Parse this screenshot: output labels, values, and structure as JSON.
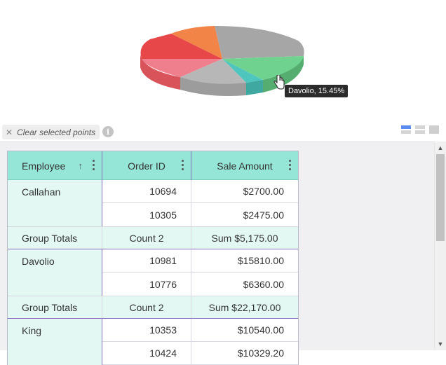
{
  "chart": {
    "tooltip": "Davolio, 15.45%",
    "slices": [
      {
        "color": "#a6a6a6"
      },
      {
        "color": "#6fd38f"
      },
      {
        "color": "#4ec6bd"
      },
      {
        "color": "#b7b7b7"
      },
      {
        "color": "#ef7f8d"
      },
      {
        "color": "#e8474a"
      },
      {
        "color": "#f28447"
      }
    ]
  },
  "toolbar": {
    "clear_label": "Clear selected points",
    "clear_icon": "close-icon",
    "info_glyph": "i"
  },
  "grid": {
    "columns": [
      {
        "label": "Employee",
        "sorted": "ascending"
      },
      {
        "label": "Order ID"
      },
      {
        "label": "Sale Amount"
      }
    ],
    "groups": [
      {
        "employee": "Callahan",
        "rows": [
          {
            "order_id": "10694",
            "amount": "$2700.00"
          },
          {
            "order_id": "10305",
            "amount": "$2475.00"
          }
        ],
        "totals": {
          "label": "Group Totals",
          "count": "Count 2",
          "sum": "Sum $5,175.00"
        }
      },
      {
        "employee": "Davolio",
        "rows": [
          {
            "order_id": "10981",
            "amount": "$15810.00"
          },
          {
            "order_id": "10776",
            "amount": "$6360.00"
          }
        ],
        "totals": {
          "label": "Group Totals",
          "count": "Count 2",
          "sum": "Sum $22,170.00"
        }
      },
      {
        "employee": "King",
        "rows": [
          {
            "order_id": "10353",
            "amount": "$10540.00"
          },
          {
            "order_id": "10424",
            "amount": "$10329.20"
          }
        ]
      }
    ]
  },
  "colors": {
    "header_bg": "#95e6d6",
    "group_bg": "#e3f8f3",
    "group_border": "#8a6fbf",
    "tooltip_bg": "#2b2b2b"
  }
}
